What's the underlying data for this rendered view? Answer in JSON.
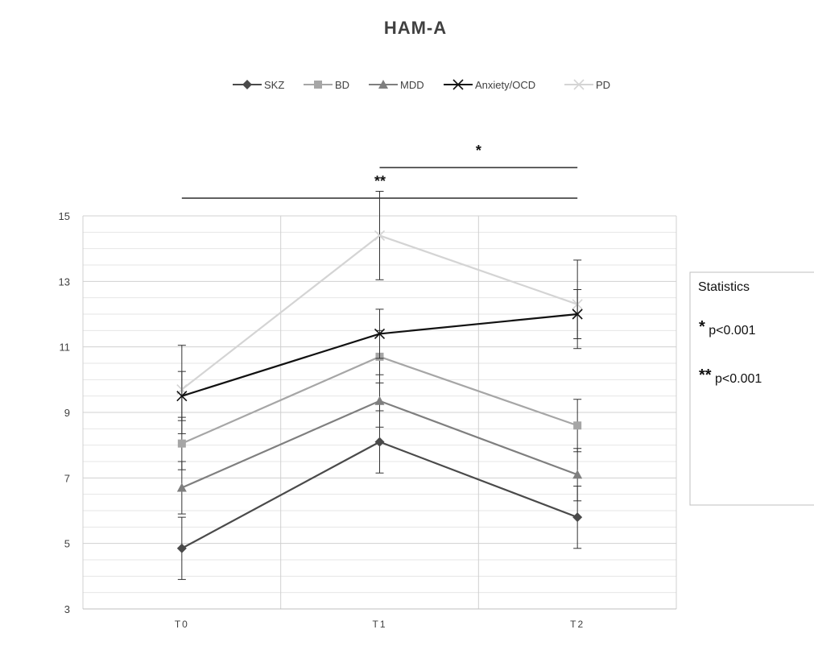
{
  "chart_data": {
    "type": "line",
    "title": "HAM-A",
    "categories": [
      "T0",
      "T1",
      "T2"
    ],
    "ylim": [
      3,
      15
    ],
    "yticks": [
      3,
      5,
      7,
      9,
      11,
      13,
      15
    ],
    "grid": true,
    "legend_position": "top",
    "series": [
      {
        "name": "SKZ",
        "color": "#4a4a4a",
        "marker": "diamond",
        "values": [
          4.85,
          8.1,
          5.8
        ],
        "error": [
          0.95,
          0.95,
          0.95
        ]
      },
      {
        "name": "BD",
        "color": "#a6a6a6",
        "marker": "square",
        "values": [
          8.05,
          10.7,
          8.6
        ],
        "error": [
          0.8,
          0.8,
          0.8
        ]
      },
      {
        "name": "MDD",
        "color": "#7f7f7f",
        "marker": "triangle",
        "values": [
          6.7,
          9.35,
          7.1
        ],
        "error": [
          0.8,
          0.8,
          0.8
        ]
      },
      {
        "name": "Anxiety/OCD",
        "color": "#111111",
        "marker": "x",
        "values": [
          9.5,
          11.4,
          12.0
        ],
        "error": [
          0.75,
          0.75,
          0.75
        ]
      },
      {
        "name": "PD",
        "color": "#d4d4d4",
        "marker": "x",
        "values": [
          9.7,
          14.4,
          12.3
        ],
        "error": [
          1.35,
          1.35,
          1.35
        ]
      }
    ],
    "significance": [
      {
        "label": "*",
        "from": "T1",
        "to": "T2"
      },
      {
        "label": "**",
        "from": "T0",
        "to": "T2"
      }
    ]
  },
  "stats_box": {
    "title": "Statistics",
    "entries": [
      {
        "marker": "*",
        "text": "p<0.001"
      },
      {
        "marker": "**",
        "text": "p<0.001"
      }
    ]
  }
}
